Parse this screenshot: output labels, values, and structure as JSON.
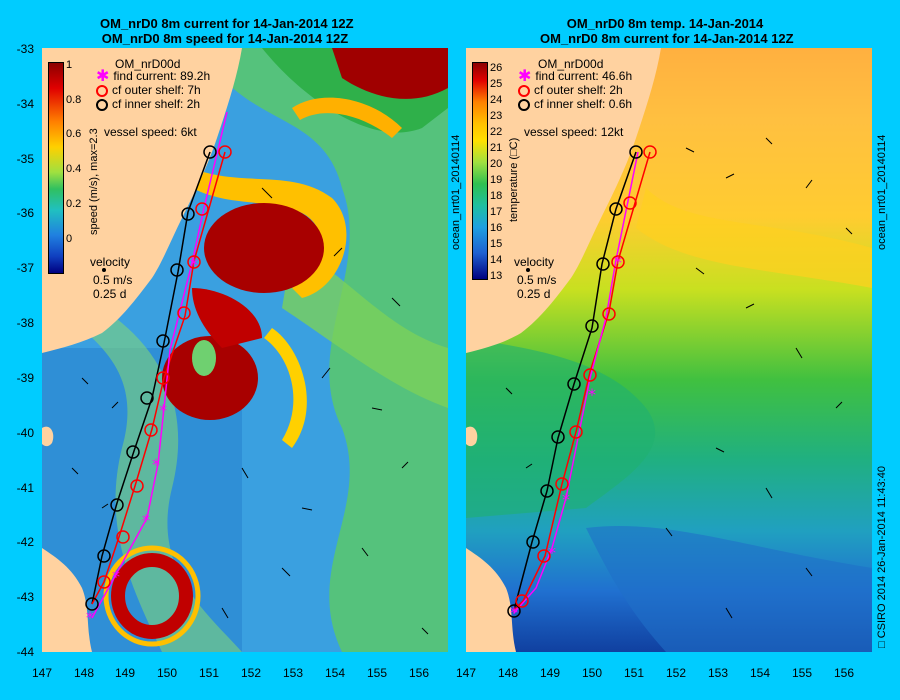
{
  "left": {
    "title_line1": "OM_nrD0 8m current for 14-Jan-2014 12Z",
    "title_line2": "OM_nrD0 8m speed for 14-Jan-2014 12Z",
    "model_label": "OM_nrD00d",
    "legend": [
      {
        "text": "find current: 89.2h",
        "color": "#ff00ff",
        "symbol": "asterisk"
      },
      {
        "text": "cf outer shelf: 7h",
        "color": "#ff0000",
        "symbol": "circle"
      },
      {
        "text": "cf inner shelf: 2h",
        "color": "#000000",
        "symbol": "circle"
      }
    ],
    "vessel_speed": "vessel speed: 6kt",
    "colorbar_label": "speed (m/s), max=2.3",
    "colorbar_ticks": [
      "1",
      "0.8",
      "0.6",
      "0.4",
      "0.2",
      "0"
    ],
    "velocity_label": "velocity",
    "velocity_scale": "0.5 m/s",
    "velocity_time": "0.25 d"
  },
  "right": {
    "title_line1": "OM_nrD0 8m temp. 14-Jan-2014",
    "title_line2": "OM_nrD0 8m current for 14-Jan-2014 12Z",
    "model_label": "OM_nrD00d",
    "legend": [
      {
        "text": "find current: 46.6h",
        "color": "#ff00ff",
        "symbol": "asterisk"
      },
      {
        "text": "cf outer shelf: 2h",
        "color": "#ff0000",
        "symbol": "circle"
      },
      {
        "text": "cf inner shelf: 0.6h",
        "color": "#000000",
        "symbol": "circle"
      }
    ],
    "vessel_speed": "vessel speed: 12kt",
    "colorbar_label": "temperature (□C)",
    "colorbar_ticks": [
      "26",
      "25",
      "24",
      "23",
      "22",
      "21",
      "20",
      "19",
      "18",
      "17",
      "16",
      "15",
      "14",
      "13"
    ],
    "velocity_label": "velocity",
    "velocity_scale": "0.5 m/s",
    "velocity_time": "0.25 d"
  },
  "y_ticks": [
    "-33",
    "-34",
    "-35",
    "-36",
    "-37",
    "-38",
    "-39",
    "-40",
    "-41",
    "-42",
    "-43",
    "-44"
  ],
  "x_ticks": [
    "147",
    "148",
    "149",
    "150",
    "151",
    "152",
    "153",
    "154",
    "155",
    "156"
  ],
  "side_label_left": "ocean_nrt01_20140114",
  "side_label_right_top": "ocean_nrt01_20140114",
  "side_label_right_bottom": "□ CSIRO 2014   26-Jan-2014 11:43:40"
}
